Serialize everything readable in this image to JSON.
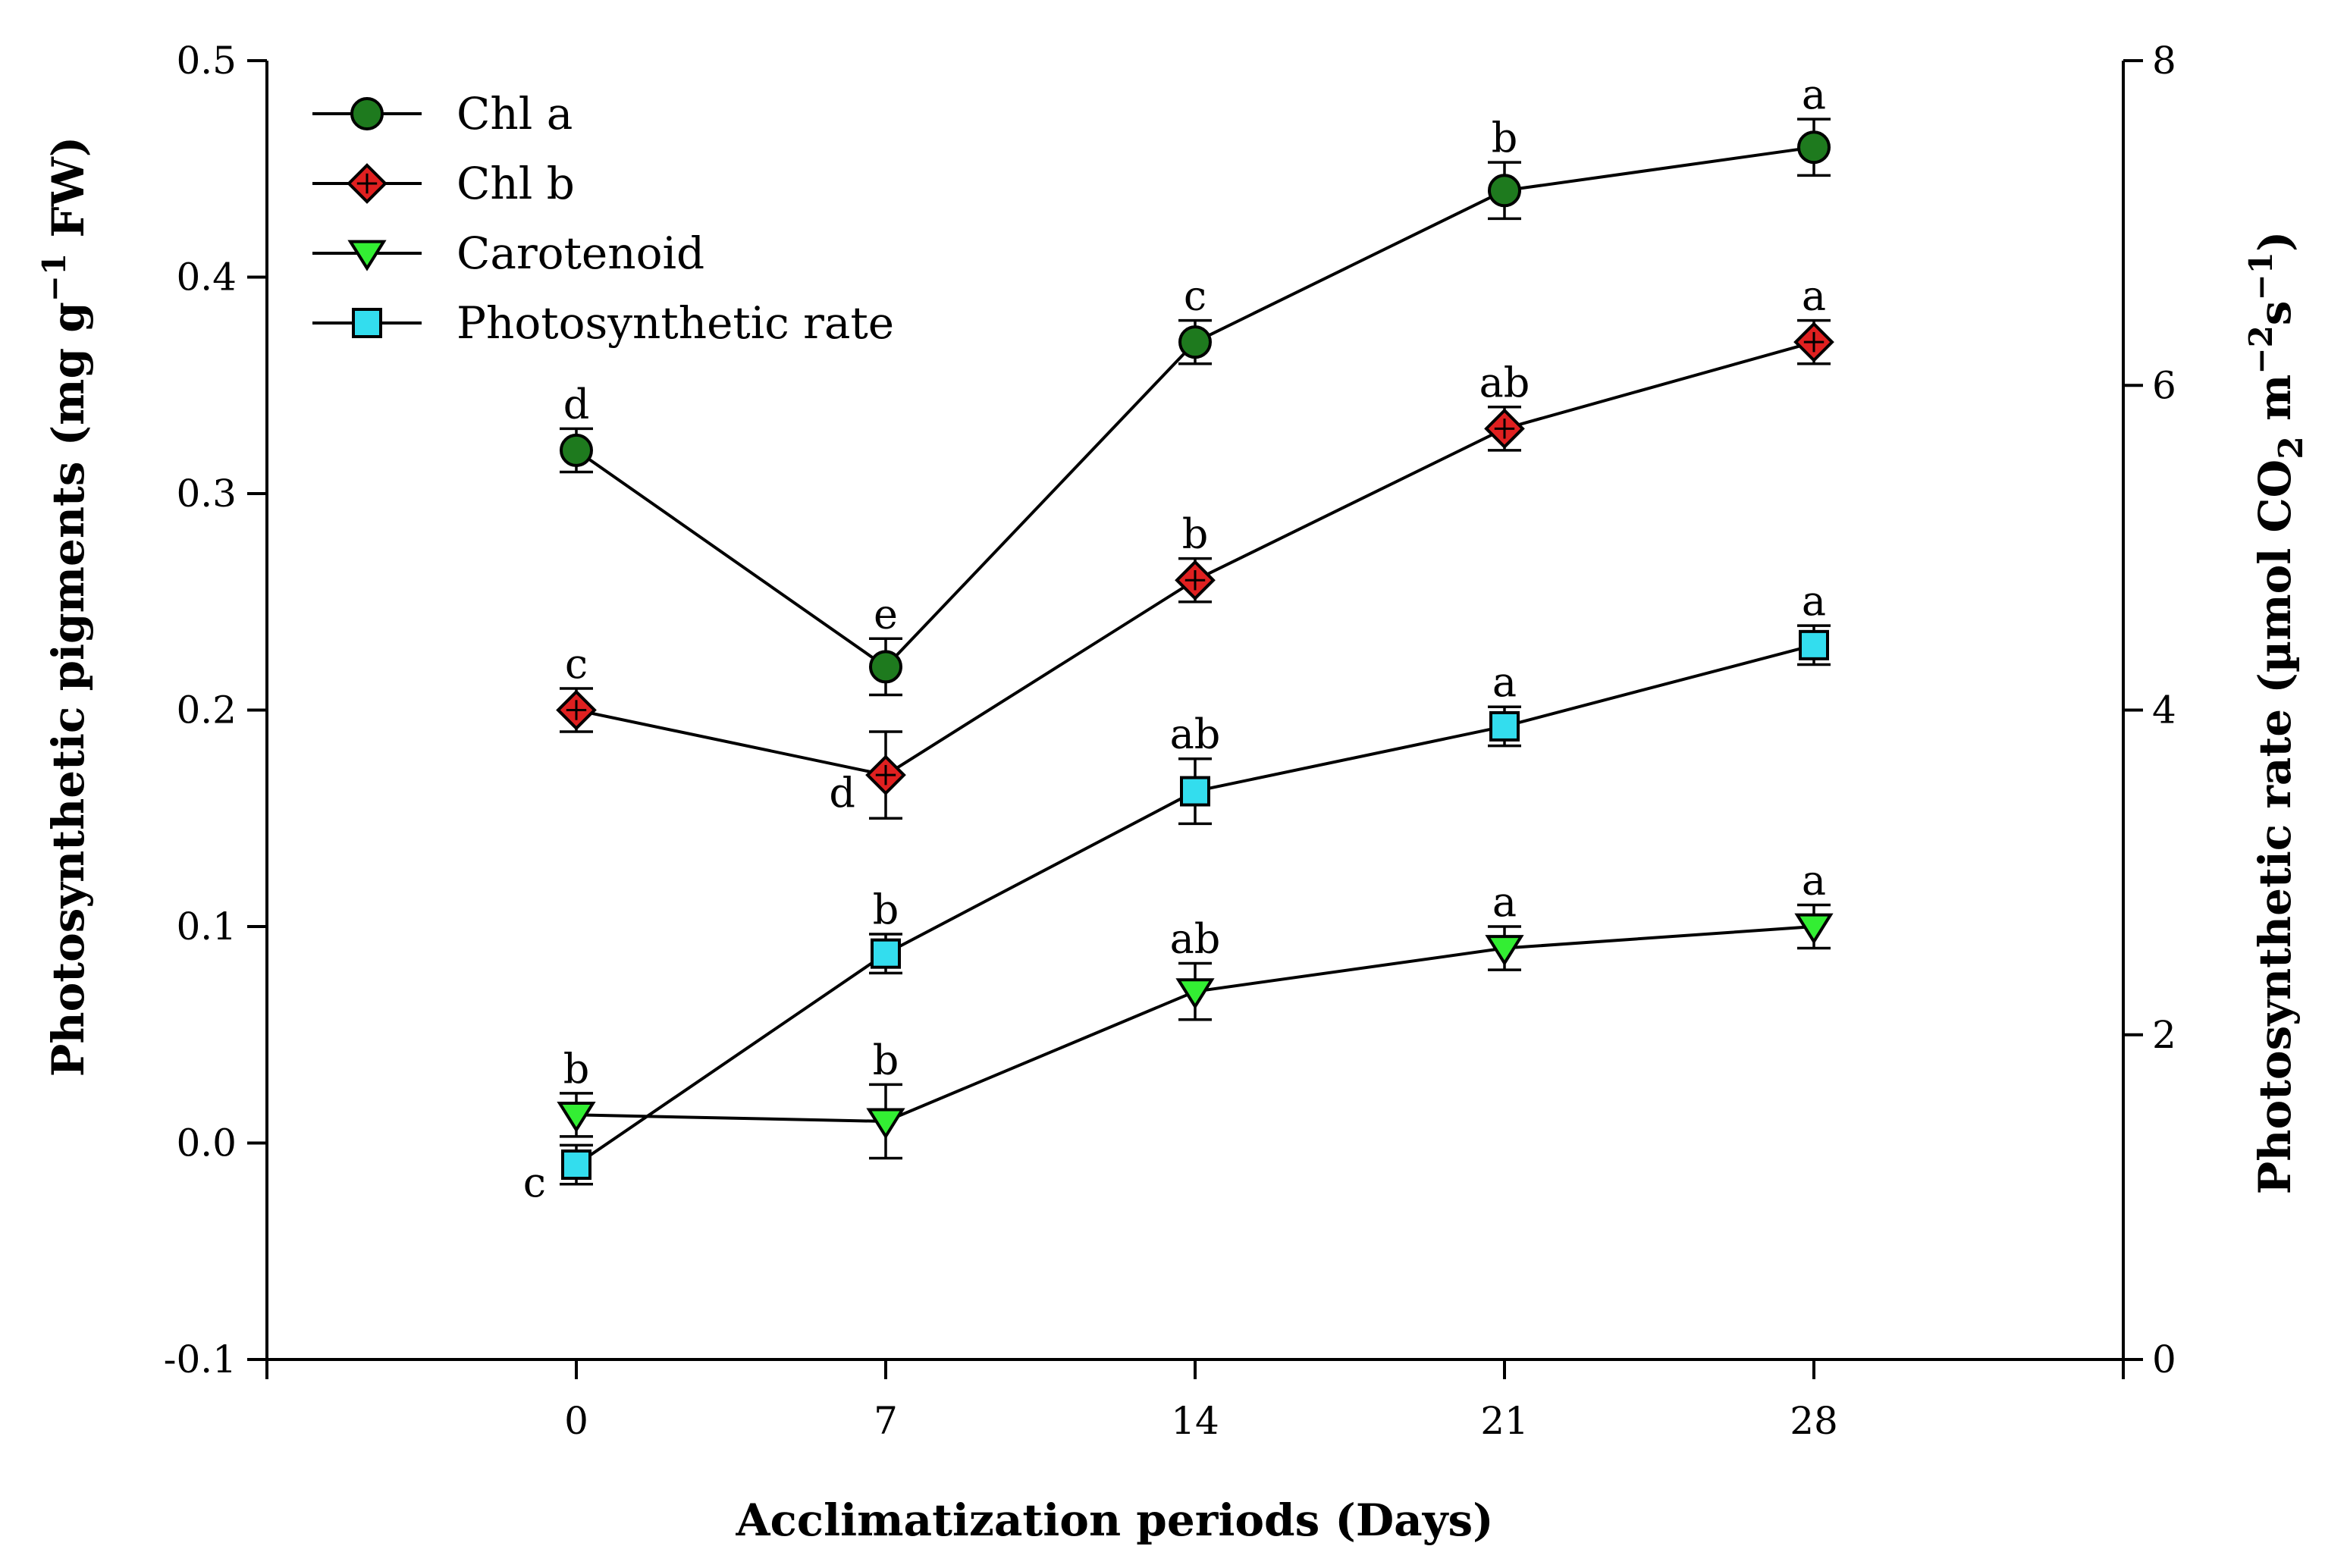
{
  "chart_data": {
    "type": "line",
    "xlabel": "Acclimatization periods (Days)",
    "ylabel_left": {
      "text": "Photosynthetic pigments (mg g",
      "sup": "−1",
      "suffix": " FW)"
    },
    "ylabel_right": {
      "text": "Photosynthetic rate (µmol CO",
      "sub": "2",
      "mid": " m",
      "sup1": "−2",
      "s": "s",
      "sup2": "−1",
      "suffix": ")"
    },
    "x_ticks": [
      "0",
      "7",
      "14",
      "21",
      "28"
    ],
    "x_values": [
      0,
      7,
      14,
      21,
      28
    ],
    "xlim": [
      -7,
      35
    ],
    "y_left_ticks": [
      "-0.1",
      "0.0",
      "0.1",
      "0.2",
      "0.3",
      "0.4",
      "0.5"
    ],
    "ylim_left": [
      -0.1,
      0.5
    ],
    "y_right_ticks": [
      "0",
      "2",
      "4",
      "6",
      "8"
    ],
    "ylim_right": [
      0,
      8
    ],
    "legend_position": "top-left",
    "series": [
      {
        "name": "Chl a",
        "axis": "left",
        "marker": "circle",
        "color": "#1e7a1e",
        "values": [
          0.32,
          0.22,
          0.37,
          0.44,
          0.46
        ],
        "errors": [
          0.01,
          0.013,
          0.01,
          0.013,
          0.013
        ],
        "letters": [
          "d",
          "e",
          "c",
          "b",
          "a"
        ]
      },
      {
        "name": "Chl b",
        "axis": "left",
        "marker": "diamond",
        "color": "#e02020",
        "values": [
          0.2,
          0.17,
          0.26,
          0.33,
          0.37
        ],
        "errors": [
          0.01,
          0.02,
          0.01,
          0.01,
          0.01
        ],
        "letters": [
          "c",
          "d",
          "b",
          "ab",
          "a"
        ]
      },
      {
        "name": "Carotenoid",
        "axis": "left",
        "marker": "triangle-down",
        "color": "#33ee33",
        "values": [
          0.013,
          0.01,
          0.07,
          0.09,
          0.1
        ],
        "errors": [
          0.01,
          0.017,
          0.013,
          0.01,
          0.01
        ],
        "letters": [
          "b",
          "b",
          "ab",
          "a",
          "a"
        ]
      },
      {
        "name": "Photosynthetic rate",
        "axis": "right",
        "marker": "square",
        "color": "#33ddee",
        "values": [
          1.2,
          2.5,
          3.5,
          3.9,
          4.4
        ],
        "errors": [
          0.12,
          0.12,
          0.2,
          0.12,
          0.12
        ],
        "letters": [
          "c",
          "b",
          "ab",
          "a",
          "a"
        ]
      }
    ]
  }
}
